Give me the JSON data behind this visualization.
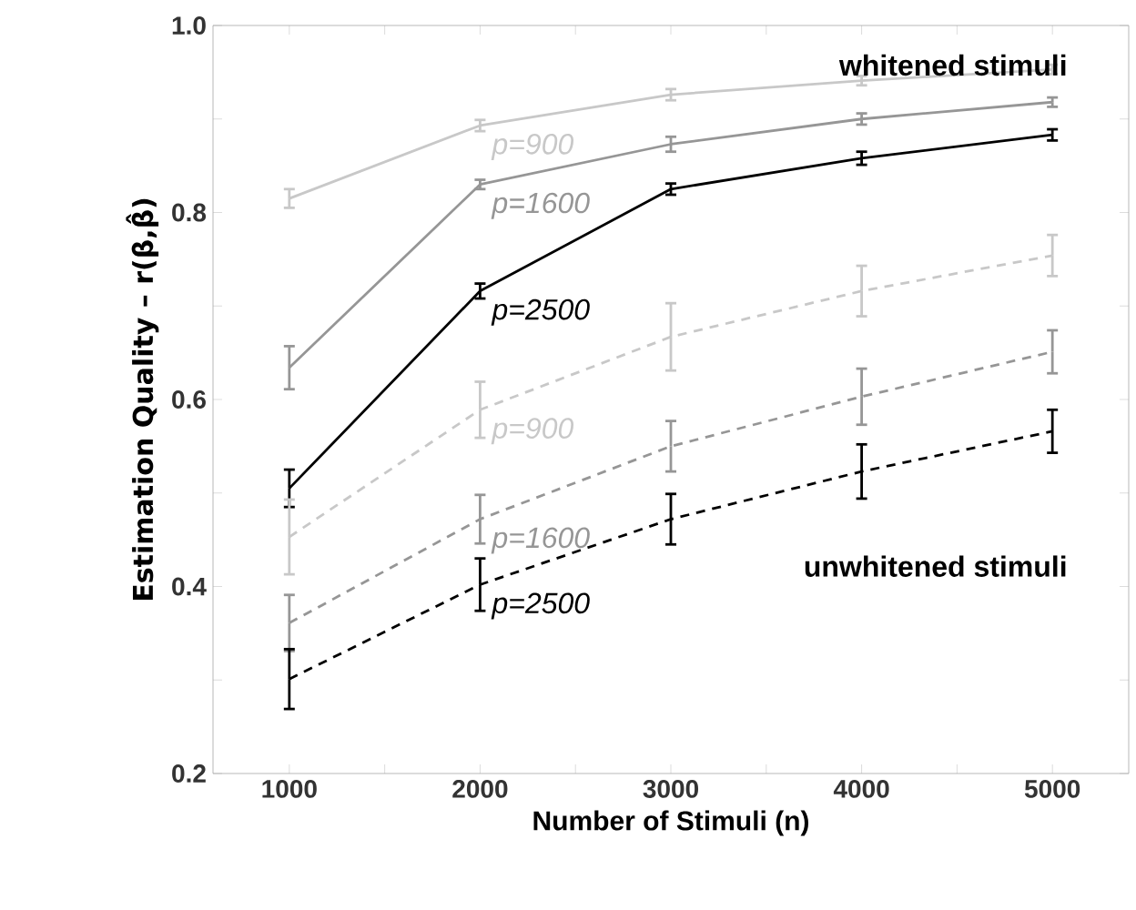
{
  "chart_data": {
    "type": "line",
    "xlabel": "Number of Stimuli (n)",
    "ylabel": "Estimation Quality – r(β,β̂)",
    "x": [
      1000,
      2000,
      3000,
      4000,
      5000
    ],
    "xlim": [
      600,
      5400
    ],
    "ylim": [
      0.2,
      1.0
    ],
    "xticks": [
      1000,
      {
        "value": 1500,
        "label": null
      },
      2000,
      {
        "value": 2500,
        "label": null
      },
      3000,
      {
        "value": 3500,
        "label": null
      },
      4000,
      {
        "value": 4500,
        "label": null
      },
      5000
    ],
    "yticks": [
      0.2,
      {
        "value": 0.3,
        "label": null
      },
      0.4,
      {
        "value": 0.5,
        "label": null
      },
      0.6,
      {
        "value": 0.7,
        "label": null
      },
      0.8,
      {
        "value": 0.9,
        "label": null
      },
      {
        "value": 1,
        "label": "1.0"
      }
    ],
    "marker": "none",
    "grid": false,
    "legend": false,
    "series": [
      {
        "name": "p=900",
        "color": "#c8c8c8",
        "line_style": "solid",
        "values": [
          0.815,
          0.893,
          0.926,
          0.941,
          0.953
        ],
        "errors": [
          0.01,
          0.006,
          0.006,
          0.005,
          0.005
        ]
      },
      {
        "name": "p=1600",
        "color": "#969696",
        "line_style": "solid",
        "values": [
          0.634,
          0.83,
          0.873,
          0.9,
          0.918
        ],
        "errors": [
          0.023,
          0.005,
          0.008,
          0.006,
          0.005
        ]
      },
      {
        "name": "p=2500",
        "color": "#000000",
        "line_style": "solid",
        "values": [
          0.505,
          0.716,
          0.825,
          0.858,
          0.883
        ],
        "errors": [
          0.02,
          0.008,
          0.006,
          0.007,
          0.006
        ]
      },
      {
        "name": "p=900",
        "color": "#c8c8c8",
        "line_style": "dashed",
        "values": [
          0.453,
          0.589,
          0.667,
          0.716,
          0.754
        ],
        "errors": [
          0.04,
          0.03,
          0.036,
          0.027,
          0.022
        ]
      },
      {
        "name": "p=1600",
        "color": "#969696",
        "line_style": "dashed",
        "values": [
          0.361,
          0.472,
          0.55,
          0.603,
          0.651
        ],
        "errors": [
          0.03,
          0.026,
          0.027,
          0.03,
          0.023
        ]
      },
      {
        "name": "p=2500",
        "color": "#000000",
        "line_style": "dashed",
        "values": [
          0.301,
          0.402,
          0.472,
          0.523,
          0.566
        ],
        "errors": [
          0.032,
          0.028,
          0.027,
          0.029,
          0.023
        ]
      }
    ],
    "annotations": [
      "whitened stimuli",
      "unwhitened stimuli"
    ]
  }
}
